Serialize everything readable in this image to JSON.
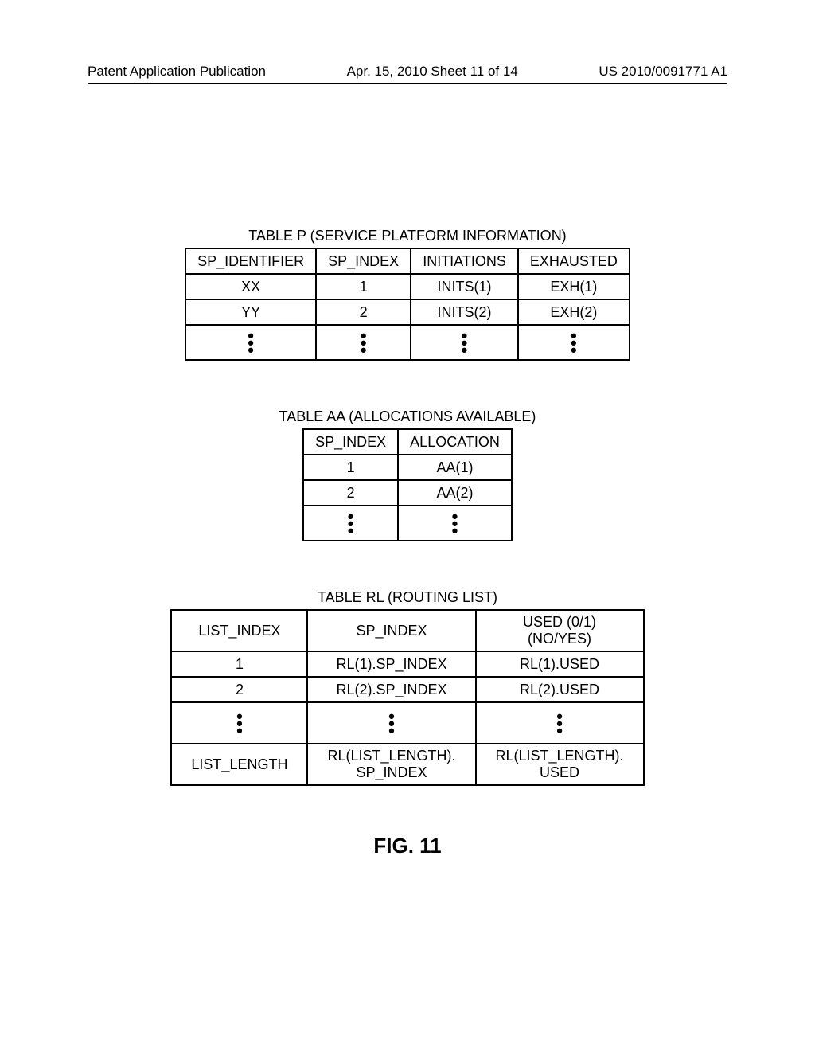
{
  "header": {
    "left": "Patent Application Publication",
    "mid": "Apr. 15, 2010  Sheet 11 of 14",
    "right": "US 2010/0091771 A1"
  },
  "tableP": {
    "title": "TABLE P (SERVICE PLATFORM INFORMATION)",
    "headers": [
      "SP_IDENTIFIER",
      "SP_INDEX",
      "INITIATIONS",
      "EXHAUSTED"
    ],
    "rows": [
      [
        "XX",
        "1",
        "INITS(1)",
        "EXH(1)"
      ],
      [
        "YY",
        "2",
        "INITS(2)",
        "EXH(2)"
      ]
    ]
  },
  "tableAA": {
    "title": "TABLE AA (ALLOCATIONS AVAILABLE)",
    "headers": [
      "SP_INDEX",
      "ALLOCATION"
    ],
    "rows": [
      [
        "1",
        "AA(1)"
      ],
      [
        "2",
        "AA(2)"
      ]
    ]
  },
  "tableRL": {
    "title": "TABLE RL (ROUTING LIST)",
    "headers": [
      "LIST_INDEX",
      "SP_INDEX",
      "USED (0/1)\n(NO/YES)"
    ],
    "rows": [
      [
        "1",
        "RL(1).SP_INDEX",
        "RL(1).USED"
      ],
      [
        "2",
        "RL(2).SP_INDEX",
        "RL(2).USED"
      ]
    ],
    "lastRow": [
      "LIST_LENGTH",
      "RL(LIST_LENGTH).\nSP_INDEX",
      "RL(LIST_LENGTH).\nUSED"
    ]
  },
  "figure_label": "FIG. 11"
}
